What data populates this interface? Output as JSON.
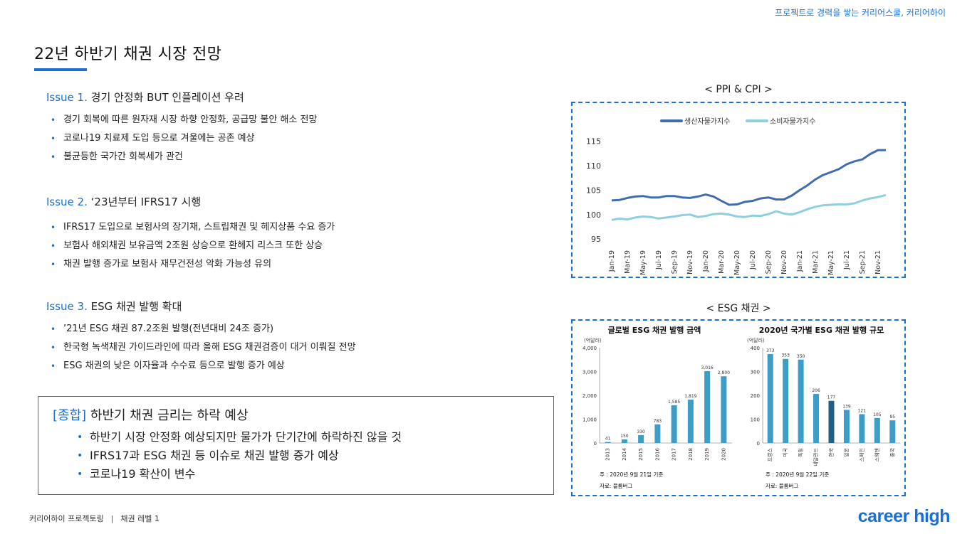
{
  "header": {
    "tagline": "프로젝트로 경력을 쌓는 커리어스쿨, 커리어하이"
  },
  "page": {
    "title": "22년 하반기 채권 시장 전망"
  },
  "issues": [
    {
      "num": "Issue 1.",
      "title": " 경기 안정화 BUT 인플레이션 우려",
      "bullets": [
        "경기 회복에 따른 원자재 시장 하향 안정화, 공급망 불안 해소 전망",
        "코로나19 치료제 도입 등으로 겨울에는 공존 예상",
        "불균등한 국가간 회복세가 관건"
      ]
    },
    {
      "num": "Issue 2.",
      "title": " ‘23년부터 IFRS17 시행",
      "bullets": [
        "IFRS17 도입으로 보험사의 장기채, 스트립채권 및 헤지상품 수요 증가",
        "보험사 해외채권 보유금액 2조원 상승으로 환헤지 리스크 또한 상승",
        "채권 발행 증가로 보험사 재무건전성 악화 가능성 유의"
      ]
    },
    {
      "num": "Issue 3.",
      "title": " ESG 채권 발행 확대",
      "bullets": [
        "’21년 ESG 채권 87.2조원 발행(전년대비 24조 증가)",
        "한국형 녹색채권 가이드라인에 따라 올해 ESG 채권검증이 대거 이뤄질 전망",
        "ESG 채권의 낮은 이자율과 수수료 등으로 발행 증가 예상"
      ]
    }
  ],
  "summary": {
    "tag": "[종합]",
    "title": " 하반기 채권 금리는 하락 예상",
    "bullets": [
      "하반기 시장 안정화 예상되지만 물가가 단기간에 하락하진 않을 것",
      "IFRS17과 ESG 채권 등 이슈로 채권 발행 증가 예상",
      "코로나19 확산이 변수"
    ]
  },
  "charts_captions": {
    "ppi": "< PPI & CPI >",
    "esg": "< ESG 채권 >"
  },
  "colors": {
    "accent": "#1a6fd6",
    "ppi": "#3f6db0",
    "cpi": "#8ecfe0",
    "bar": "#3d9dc6",
    "bar_highlight": "#1f5f88"
  },
  "chart_data": [
    {
      "type": "line",
      "title": "",
      "legend": [
        "생산자물가지수",
        "소비자물가지수"
      ],
      "legend_placement": "top",
      "yticks": [
        95,
        100,
        105,
        110,
        115
      ],
      "ylim": [
        94,
        117
      ],
      "xticks": [
        "Jan-19",
        "Mar-19",
        "May-19",
        "Jul-19",
        "Sep-19",
        "Nov-19",
        "Jan-20",
        "Mar-20",
        "May-20",
        "Jul-20",
        "Sep-20",
        "Nov-20",
        "Jan-21",
        "Mar-21",
        "May-21",
        "Jul-21",
        "Sep-21",
        "Nov-21"
      ],
      "series": [
        {
          "name": "생산자물가지수",
          "values": [
            102.9,
            103.0,
            103.4,
            103.7,
            103.8,
            103.5,
            103.5,
            103.8,
            103.8,
            103.5,
            103.4,
            103.7,
            104.1,
            103.7,
            102.8,
            102.0,
            102.1,
            102.6,
            102.8,
            103.3,
            103.5,
            103.1,
            103.1,
            103.9,
            105.0,
            106.0,
            107.2,
            108.1,
            108.7,
            109.3,
            110.3,
            110.9,
            111.3,
            112.4,
            113.2,
            113.2
          ]
        },
        {
          "name": "소비자물가지수",
          "values": [
            98.9,
            99.2,
            99.0,
            99.4,
            99.6,
            99.5,
            99.2,
            99.4,
            99.6,
            99.9,
            100.0,
            99.5,
            99.7,
            100.1,
            100.2,
            100.0,
            99.6,
            99.5,
            99.8,
            99.7,
            100.1,
            100.7,
            100.2,
            100.0,
            100.5,
            101.1,
            101.6,
            101.9,
            102.0,
            102.1,
            102.1,
            102.3,
            102.9,
            103.3,
            103.6,
            104.0
          ]
        }
      ]
    },
    {
      "type": "bar",
      "title": "글로벌 ESG 채권 발행 금액",
      "unit": "(억달러)",
      "categories": [
        "2013",
        "2014",
        "2015",
        "2016",
        "2017",
        "2018",
        "2019",
        "2020"
      ],
      "values": [
        41,
        150,
        330,
        783,
        1585,
        1819,
        3016,
        2800
      ],
      "value_labels": [
        "41",
        "150",
        "330",
        "783",
        "1,585",
        "1,819",
        "3,016",
        "2,800"
      ],
      "yticks": [
        "0",
        "1,000",
        "2,000",
        "3,000",
        "4,000"
      ],
      "ylim": [
        0,
        4000
      ],
      "note": "주 : 2020년 9월 21일 기준",
      "source": "자료: 블룸버그"
    },
    {
      "type": "bar",
      "title": "2020년 국가별 ESG 채권 발행 규모",
      "unit": "(억달러)",
      "categories": [
        "프랑스",
        "미국",
        "독일",
        "네덜란드",
        "한국",
        "일본",
        "스페인",
        "스웨덴",
        "중국"
      ],
      "values": [
        373,
        353,
        350,
        206,
        177,
        139,
        121,
        105,
        95
      ],
      "yticks": [
        "0",
        "100",
        "200",
        "300",
        "400"
      ],
      "ylim": [
        0,
        400
      ],
      "highlight": "한국",
      "note": "주 : 2020년 9월 22일 기준",
      "source": "자료: 블룸버그"
    }
  ],
  "footer": {
    "program": "커리어하이 프로젝토링",
    "separator": "|",
    "level": "채권 레벨 1",
    "brand": "career high"
  }
}
